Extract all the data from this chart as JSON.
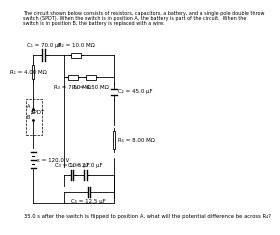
{
  "title_lines": [
    "The circuit shown below consists of resistors, capacitors, a battery, and a single pole double throw",
    "switch (SPDT). When the switch is in position A, the battery is part of the circuit.  When the",
    "switch is in position B, the battery is replaced with a wire."
  ],
  "question": "35.0 s after the switch is flipped to position A, what will the potential difference be across R₄?",
  "components": {
    "R1": "R₁ = 4.00 MΩ",
    "R2": "R₂ = 10.0 MΩ",
    "R3": "R₃ = 7.50 MΩ",
    "R4": "R₄ = 4.50 MΩ",
    "R5": "R₅ = 8.00 MΩ",
    "C1": "C₁ = 70.0 μF",
    "C2": "C₂ = 45.0 μF",
    "C3": "C₃ = 10.5 μF",
    "C4": "C₄ = 27.0 μF",
    "C5": "C₅ = 12.5 μF",
    "EMF": "ε = 120.0 V",
    "SPDT": "SPDT"
  },
  "bg_color": "#ffffff",
  "line_color": "#000000",
  "font_size": 4.0,
  "title_font_size": 3.5,
  "question_font_size": 3.8
}
